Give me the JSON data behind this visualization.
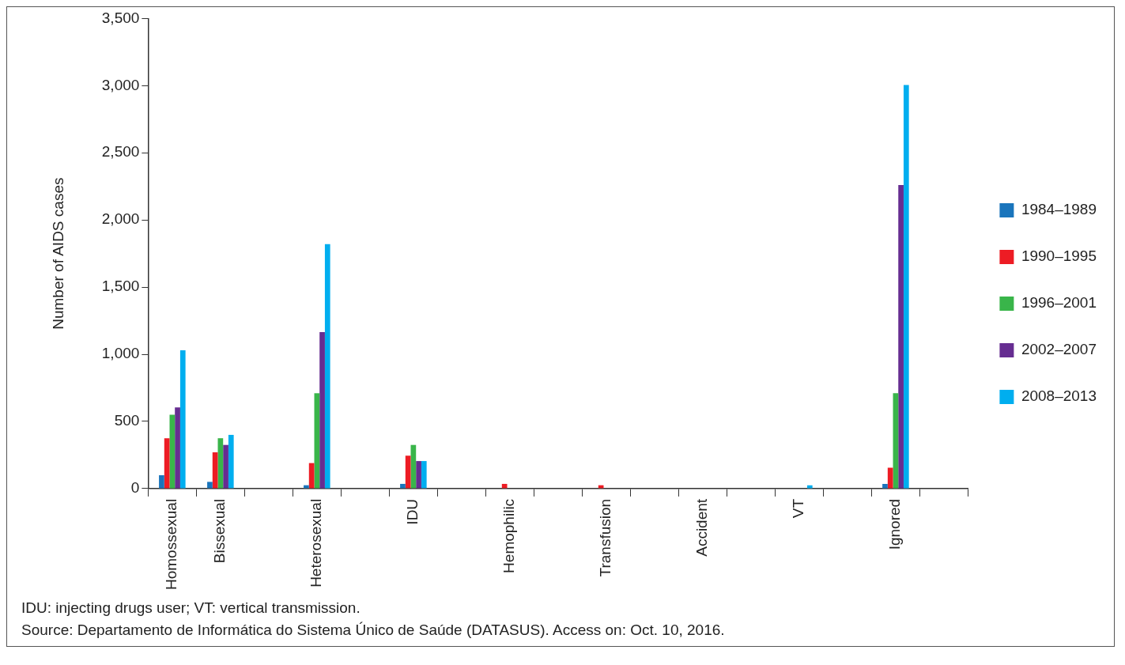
{
  "chart_data": {
    "type": "bar",
    "ylabel": "Number of AIDS cases",
    "categories": [
      "Homossexual",
      "Bissexual",
      null,
      "Heterosexual",
      null,
      "IDU",
      null,
      "Hemophilic",
      null,
      "Transfusion",
      null,
      "Accident",
      null,
      "VT",
      null,
      "Ignored",
      null
    ],
    "series": [
      {
        "name": "1984–1989",
        "color": "#1a75bc",
        "values": [
          100,
          50,
          null,
          25,
          null,
          35,
          null,
          0,
          null,
          0,
          null,
          0,
          null,
          0,
          null,
          35,
          null
        ]
      },
      {
        "name": "1990–1995",
        "color": "#ed1c24",
        "values": [
          375,
          270,
          null,
          190,
          null,
          245,
          null,
          35,
          null,
          25,
          null,
          0,
          null,
          0,
          null,
          155,
          null
        ]
      },
      {
        "name": "1996–2001",
        "color": "#39b54a",
        "values": [
          550,
          375,
          null,
          710,
          null,
          325,
          null,
          0,
          null,
          0,
          null,
          0,
          null,
          0,
          null,
          710,
          null
        ]
      },
      {
        "name": "2002–2007",
        "color": "#662d91",
        "values": [
          605,
          325,
          null,
          1165,
          null,
          205,
          null,
          0,
          null,
          0,
          null,
          0,
          null,
          0,
          null,
          2260,
          null
        ]
      },
      {
        "name": "2008–2013",
        "color": "#00aeef",
        "values": [
          1030,
          400,
          null,
          1820,
          null,
          205,
          null,
          0,
          null,
          0,
          null,
          0,
          null,
          25,
          null,
          3005,
          null
        ]
      }
    ],
    "ylim": [
      0,
      3500
    ],
    "yticks": [
      {
        "value": 0,
        "label": "0"
      },
      {
        "value": 500,
        "label": "500"
      },
      {
        "value": 1000,
        "label": "1,000"
      },
      {
        "value": 1500,
        "label": "1,500"
      },
      {
        "value": 2000,
        "label": "2,000"
      },
      {
        "value": 2500,
        "label": "2,500"
      },
      {
        "value": 3000,
        "label": "3,000"
      },
      {
        "value": 3500,
        "label": "3,500"
      }
    ],
    "grid": false,
    "legend": "right",
    "annotations": [
      "IDU: injecting drugs user; VT: vertical transmission.",
      "Source: Departamento de Informática do Sistema Único de Saúde (DATASUS). Access on: Oct. 10, 2016."
    ]
  }
}
